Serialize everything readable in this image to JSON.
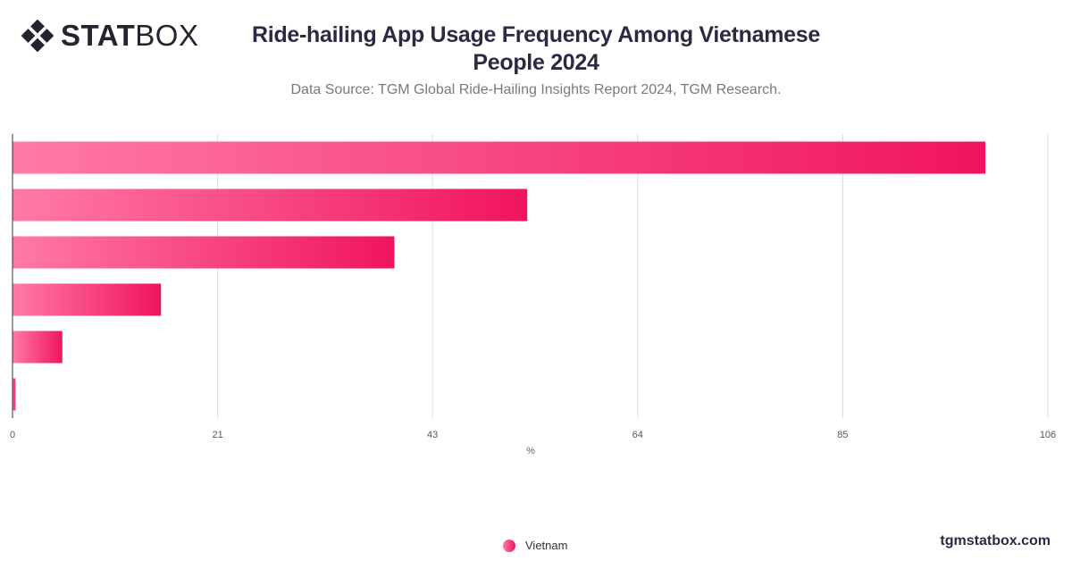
{
  "brand": {
    "logo_bold": "STAT",
    "logo_light": "BOX",
    "logo_icon": "diamond-grid-icon",
    "website": "tgmstatbox.com"
  },
  "header": {
    "title_line1": "Ride-hailing App Usage Frequency Among Vietnamese",
    "title_line2": "People 2024",
    "subtitle": "Data Source: TGM Global Ride-Hailing Insights Report 2024, TGM Research."
  },
  "chart_data": {
    "type": "bar",
    "orientation": "horizontal",
    "categories": [
      "",
      "",
      "",
      "",
      "",
      ""
    ],
    "series": [
      {
        "name": "Vietnam",
        "values": [
          99.6,
          52.7,
          39.1,
          15.2,
          5.1,
          0.3
        ]
      }
    ],
    "xlabel": "%",
    "ylabel": "",
    "xlim": [
      0,
      106
    ],
    "ticks": [
      0,
      21,
      43,
      64,
      85,
      106
    ],
    "grid": true,
    "legend": "bottom-center",
    "colors": {
      "bar_start": "#ff7aa6",
      "bar_end": "#f0145f",
      "grid": "#dddddd",
      "axis": "#333333"
    }
  }
}
